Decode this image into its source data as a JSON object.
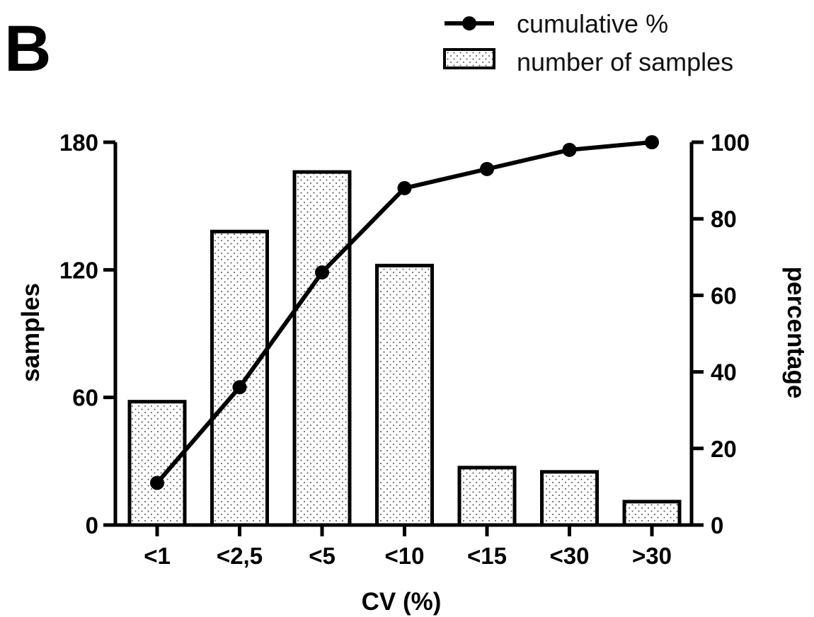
{
  "panel_label": "B",
  "legend": {
    "line_label": "cumulative %",
    "bar_label": "number of samples"
  },
  "chart_data": {
    "type": "bar",
    "categories": [
      "<1",
      "<2,5",
      "<5",
      "<10",
      "<15",
      "<30",
      ">30"
    ],
    "series": [
      {
        "name": "number of samples",
        "type": "bar",
        "axis": "left",
        "values": [
          58,
          138,
          166,
          122,
          27,
          25,
          11
        ]
      },
      {
        "name": "cumulative %",
        "type": "line",
        "axis": "right",
        "values": [
          11,
          36,
          66,
          88,
          93,
          98,
          100
        ]
      }
    ],
    "xlabel": "CV (%)",
    "ylabel": "samples",
    "y2label": "percentage",
    "ylim": [
      0,
      180
    ],
    "y2lim": [
      0,
      100
    ],
    "yticks": [
      0,
      60,
      120,
      180
    ],
    "y2ticks": [
      0,
      20,
      40,
      60,
      80,
      100
    ],
    "bar_pattern": "dotted",
    "line_color": "#000000",
    "bar_fill": "#ffffff",
    "grid": false,
    "legend_position": "top-right"
  }
}
